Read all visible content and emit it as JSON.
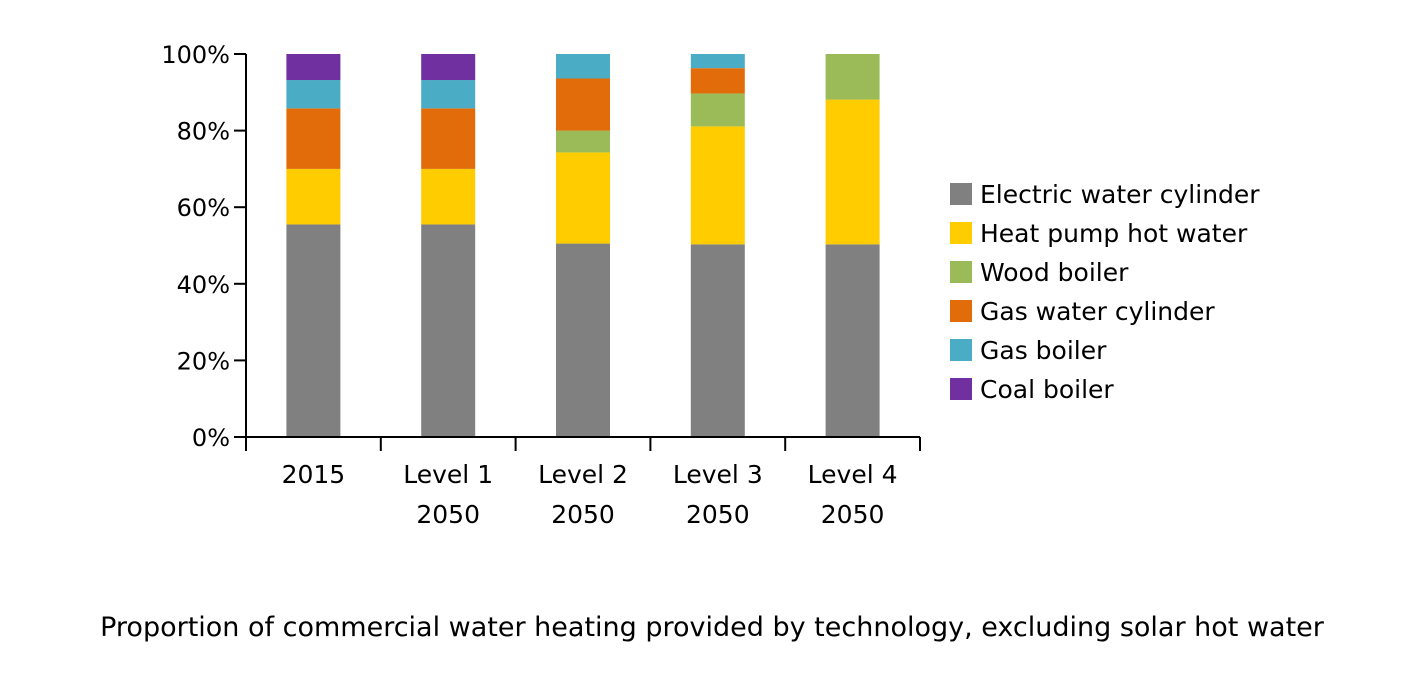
{
  "chart_data": {
    "type": "bar",
    "stacked": true,
    "title": "",
    "caption": "Proportion of commercial water heating provided by technology, excluding solar hot water",
    "xlabel": "",
    "ylabel": "",
    "ylim": [
      0,
      100
    ],
    "y_ticks": [
      "0%",
      "20%",
      "40%",
      "60%",
      "80%",
      "100%"
    ],
    "categories": [
      [
        "2015"
      ],
      [
        "Level 1",
        "2050"
      ],
      [
        "Level 2",
        "2050"
      ],
      [
        "Level 3",
        "2050"
      ],
      [
        "Level 4",
        "2050"
      ]
    ],
    "legend_position": "right",
    "series": [
      {
        "name": "Electric water cylinder",
        "color": "#808080",
        "values": [
          55.5,
          55.5,
          50.5,
          50.3,
          50.3
        ]
      },
      {
        "name": "Heat pump hot water",
        "color": "#FFCC00",
        "values": [
          14.5,
          14.5,
          23.8,
          30.8,
          37.8
        ]
      },
      {
        "name": "Wood boiler",
        "color": "#9BBB59",
        "values": [
          0,
          0,
          5.7,
          8.6,
          11.9
        ]
      },
      {
        "name": "Gas water cylinder",
        "color": "#E36C0A",
        "values": [
          15.8,
          15.8,
          13.6,
          6.6,
          0
        ]
      },
      {
        "name": "Gas boiler",
        "color": "#4BACC6",
        "values": [
          7.4,
          7.4,
          6.4,
          3.7,
          0
        ]
      },
      {
        "name": "Coal boiler",
        "color": "#7030A0",
        "values": [
          6.8,
          6.8,
          0,
          0,
          0
        ]
      }
    ]
  }
}
